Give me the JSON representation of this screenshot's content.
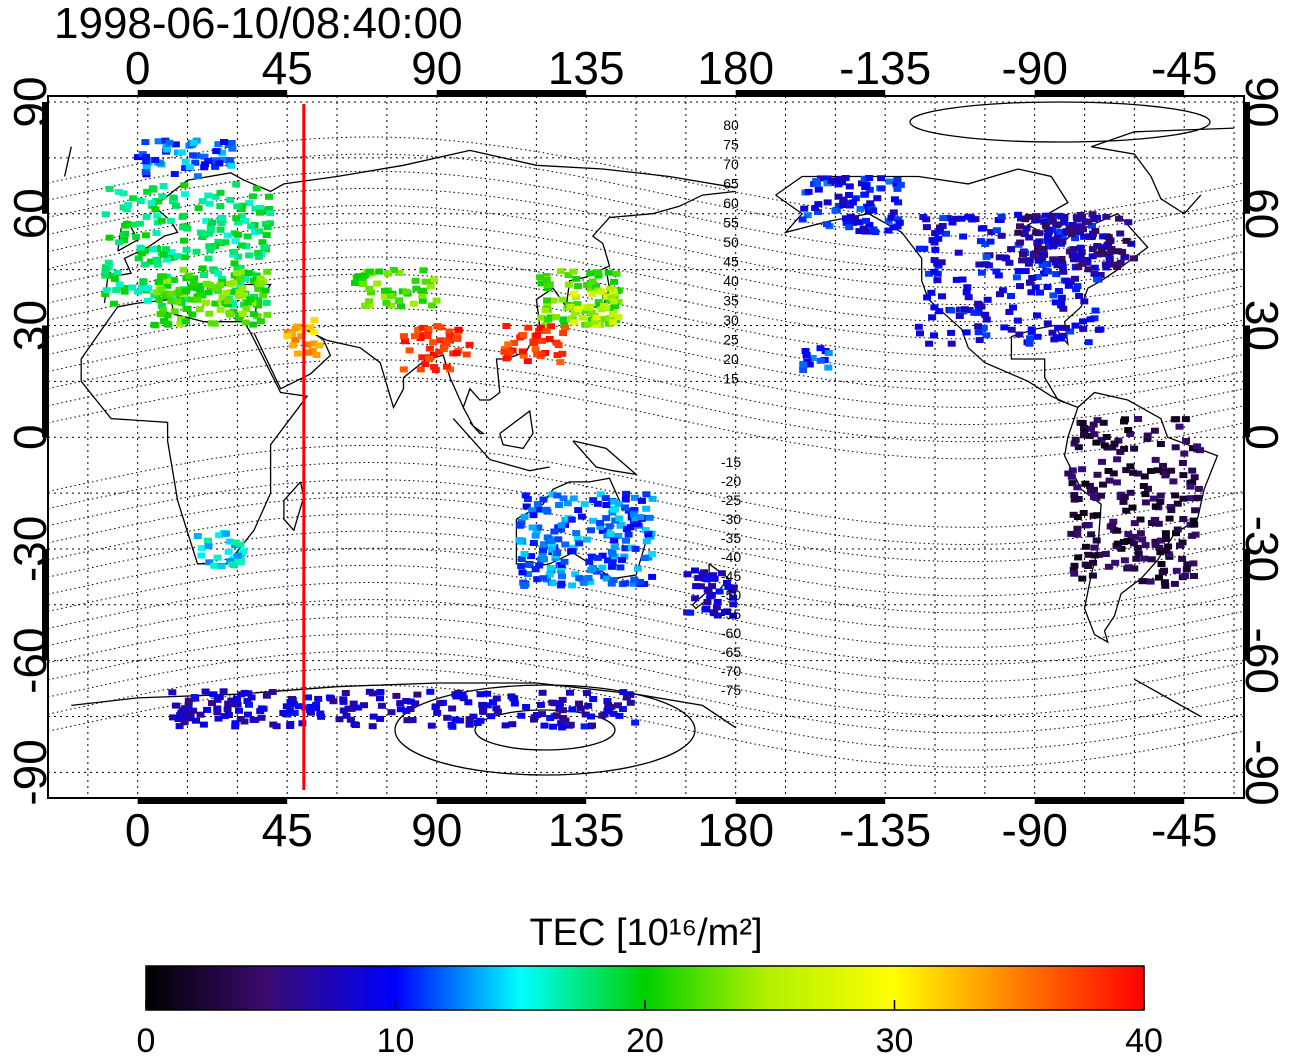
{
  "title": "1998-06-10/08:40:00",
  "map": {
    "lon_ticks_top": [
      "0",
      "45",
      "90",
      "135",
      "180",
      "-135",
      "-90",
      "-45"
    ],
    "lon_ticks_bottom": [
      "0",
      "45",
      "90",
      "135",
      "180",
      "-135",
      "-90",
      "-45"
    ],
    "lat_ticks_left": [
      "90",
      "60",
      "30",
      "0",
      "-30",
      "-60",
      "-90"
    ],
    "lat_ticks_right": [
      "90",
      "60",
      "30",
      "0",
      "-30",
      "-60",
      "-90"
    ],
    "magnetic_lat_labels_north": [
      "80",
      "75",
      "70",
      "65",
      "60",
      "55",
      "50",
      "45",
      "40",
      "35",
      "30",
      "25",
      "20",
      "15"
    ],
    "magnetic_lat_labels_south": [
      "-15",
      "-20",
      "-25",
      "-30",
      "-35",
      "-40",
      "-45",
      "-50",
      "-55",
      "-60",
      "-65",
      "-70",
      "-75"
    ],
    "marker_longitude": 50,
    "marker_color": "#ff0000"
  },
  "colorbar": {
    "label": "TEC  [10¹⁶/m²]",
    "ticks": [
      "0",
      "10",
      "20",
      "30",
      "40"
    ],
    "min": 0,
    "max": 40
  },
  "tec_clusters": [
    {
      "name": "europe",
      "lon": [
        -10,
        40
      ],
      "lat": [
        35,
        68
      ],
      "tec": 18
    },
    {
      "name": "mediterranean",
      "lon": [
        5,
        40
      ],
      "lat": [
        30,
        45
      ],
      "tec": 22
    },
    {
      "name": "scandinavia-north",
      "lon": [
        0,
        30
      ],
      "lat": [
        70,
        80
      ],
      "tec": 12
    },
    {
      "name": "middle-east",
      "lon": [
        45,
        55
      ],
      "lat": [
        22,
        32
      ],
      "tec": 33
    },
    {
      "name": "central-asia",
      "lon": [
        65,
        90
      ],
      "lat": [
        35,
        45
      ],
      "tec": 22
    },
    {
      "name": "south-asia",
      "lon": [
        80,
        100
      ],
      "lat": [
        18,
        30
      ],
      "tec": 38
    },
    {
      "name": "east-asia",
      "lon": [
        120,
        145
      ],
      "lat": [
        30,
        45
      ],
      "tec": 22
    },
    {
      "name": "china-south",
      "lon": [
        110,
        130
      ],
      "lat": [
        20,
        30
      ],
      "tec": 38
    },
    {
      "name": "japan",
      "lon": [
        130,
        145
      ],
      "lat": [
        30,
        40
      ],
      "tec": 26
    },
    {
      "name": "north-america",
      "lon": [
        -125,
        -70
      ],
      "lat": [
        25,
        60
      ],
      "tec": 9
    },
    {
      "name": "alaska",
      "lon": [
        -160,
        -130
      ],
      "lat": [
        55,
        70
      ],
      "tec": 10
    },
    {
      "name": "canada-east",
      "lon": [
        -95,
        -60
      ],
      "lat": [
        45,
        60
      ],
      "tec": 6
    },
    {
      "name": "south-america",
      "lon": [
        -80,
        -40
      ],
      "lat": [
        -40,
        5
      ],
      "tec": 3
    },
    {
      "name": "australia",
      "lon": [
        115,
        155
      ],
      "lat": [
        -40,
        -15
      ],
      "tec": 12
    },
    {
      "name": "new-zealand",
      "lon": [
        165,
        180
      ],
      "lat": [
        -48,
        -35
      ],
      "tec": 8
    },
    {
      "name": "south-africa",
      "lon": [
        18,
        32
      ],
      "lat": [
        -35,
        -25
      ],
      "tec": 15
    },
    {
      "name": "antarctica",
      "lon": [
        10,
        150
      ],
      "lat": [
        -78,
        -68
      ],
      "tec": 8
    },
    {
      "name": "hawaii",
      "lon": [
        -160,
        -152
      ],
      "lat": [
        18,
        24
      ],
      "tec": 11
    }
  ]
}
